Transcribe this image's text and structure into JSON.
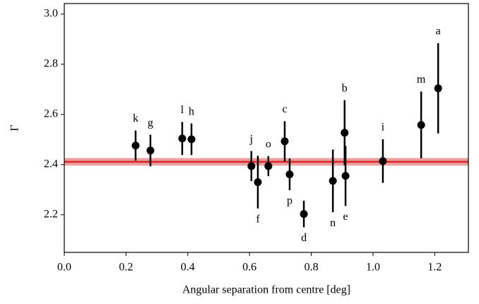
{
  "chart_data": {
    "type": "scatter",
    "xlabel": "Angular separation from centre [deg]",
    "ylabel": "Γ",
    "x": [
      0.231,
      0.279,
      0.382,
      0.412,
      0.606,
      0.627,
      0.661,
      0.714,
      0.73,
      0.776,
      0.87,
      0.908,
      0.911,
      1.032,
      1.156,
      1.211
    ],
    "values": [
      2.476,
      2.456,
      2.504,
      2.501,
      2.394,
      2.33,
      2.394,
      2.493,
      2.361,
      2.203,
      2.335,
      2.527,
      2.355,
      2.414,
      2.558,
      2.704
    ],
    "errors": [
      0.06,
      0.063,
      0.066,
      0.063,
      0.06,
      0.105,
      0.04,
      0.08,
      0.063,
      0.053,
      0.125,
      0.13,
      0.12,
      0.087,
      0.133,
      0.18
    ],
    "point_labels": [
      "k",
      "g",
      "l",
      "h",
      "j",
      "f",
      "o",
      "c",
      "p",
      "d",
      "n",
      "b",
      "e",
      "i",
      "m",
      "a"
    ],
    "color": "#000000",
    "reference": {
      "value": 2.411,
      "error": 0.015,
      "color": "#d62728"
    },
    "xlim": [
      0,
      1.309
    ],
    "ylim": [
      2.05,
      3.042
    ],
    "xticks": [
      {
        "value": 0,
        "label": "0.0"
      },
      0.2,
      0.4,
      0.6,
      0.8,
      {
        "value": 1,
        "label": "1.0"
      },
      1.2
    ],
    "yticks": [
      2.2,
      2.4,
      2.6,
      2.8,
      {
        "value": 3,
        "label": "3.0"
      }
    ]
  }
}
